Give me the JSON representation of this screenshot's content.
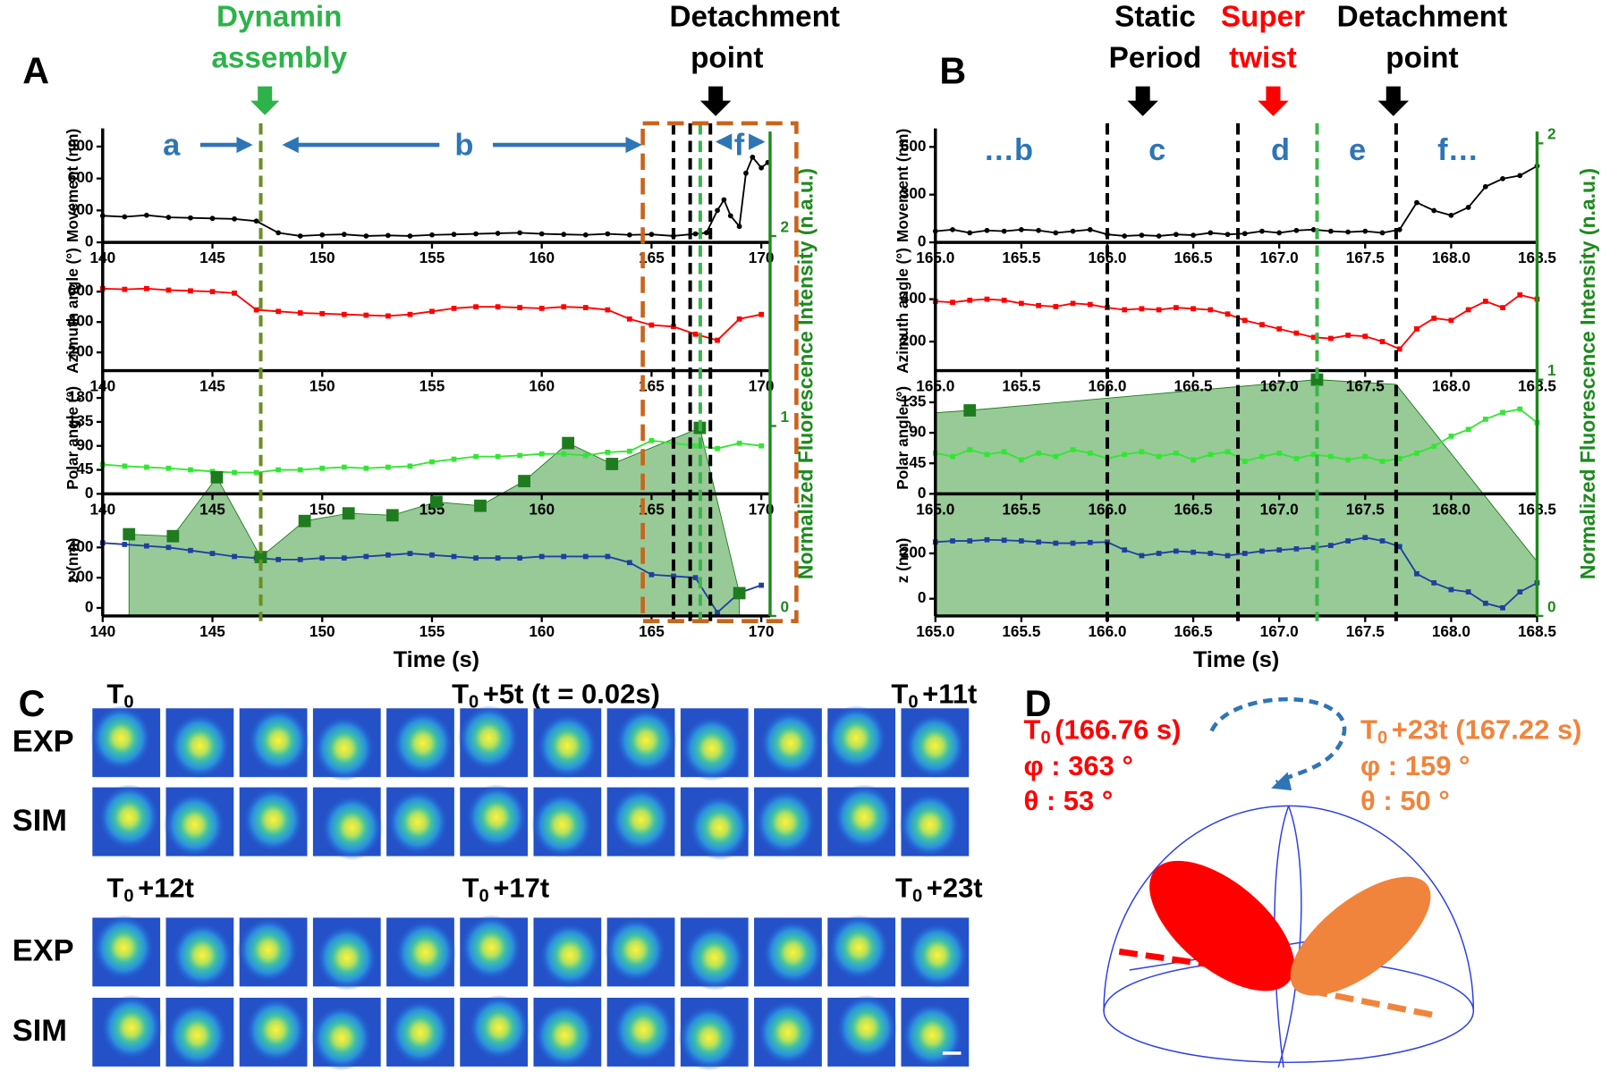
{
  "panel_a": {
    "letter": "A",
    "xlabel": "Time (s)",
    "xlim": [
      140,
      170.4
    ],
    "xticks": [
      140,
      145,
      150,
      155,
      160,
      165,
      170
    ],
    "y2label": "Normalized Fluorescence Intensity (n.a.u.)",
    "y2lim": [
      0,
      2.55
    ],
    "y2ticks": [
      0,
      1,
      2
    ],
    "annotations": {
      "dynamin": [
        "Dynamin",
        "assembly"
      ],
      "detachment": [
        "Detachment",
        "point"
      ],
      "phases": [
        "a",
        "b",
        "f"
      ]
    },
    "subplots": [
      {
        "ylabel": "Movement (nm)",
        "ylim": [
          0,
          1070
        ],
        "yticks": [
          0,
          300,
          600,
          900
        ],
        "color": "#000000",
        "marker": "circle",
        "x": [
          140,
          141,
          142,
          143,
          144,
          145,
          146,
          147,
          148,
          149,
          150,
          151,
          152,
          153,
          154,
          155,
          156,
          157,
          158,
          159,
          160,
          161,
          162,
          163,
          164,
          165,
          166,
          167,
          167.5,
          168,
          168.3,
          168.6,
          169,
          169.3,
          169.6,
          170,
          170.3
        ],
        "values": [
          250,
          240,
          255,
          235,
          230,
          225,
          220,
          200,
          90,
          60,
          70,
          75,
          60,
          65,
          60,
          70,
          75,
          80,
          85,
          90,
          80,
          75,
          70,
          80,
          70,
          75,
          60,
          80,
          90,
          300,
          400,
          250,
          150,
          650,
          800,
          700,
          750
        ]
      },
      {
        "ylabel": "Azimuth angle (°)",
        "ylim": [
          80,
          870
        ],
        "yticks": [
          200,
          400,
          600
        ],
        "color": "#ff0000",
        "marker": "square",
        "x": [
          140,
          141,
          142,
          143,
          144,
          145,
          146,
          147,
          148,
          149,
          150,
          151,
          152,
          153,
          154,
          155,
          156,
          157,
          158,
          159,
          160,
          161,
          162,
          163,
          164,
          165,
          166,
          167,
          168,
          169,
          170
        ],
        "values": [
          620,
          615,
          620,
          610,
          605,
          600,
          590,
          480,
          470,
          460,
          455,
          450,
          445,
          440,
          450,
          470,
          490,
          500,
          500,
          495,
          490,
          500,
          495,
          480,
          420,
          380,
          370,
          320,
          280,
          420,
          450
        ]
      },
      {
        "ylabel": "Polar angle (°)",
        "ylim": [
          0,
          210
        ],
        "yticks": [
          0,
          45,
          90,
          135,
          180
        ],
        "color": "#33e633",
        "marker": "square",
        "x": [
          140,
          141,
          142,
          143,
          144,
          145,
          146,
          147,
          148,
          149,
          150,
          151,
          152,
          153,
          154,
          155,
          156,
          157,
          158,
          159,
          160,
          161,
          162,
          163,
          164,
          165,
          166,
          167,
          168,
          169,
          170
        ],
        "values": [
          55,
          52,
          50,
          48,
          45,
          42,
          40,
          40,
          45,
          45,
          48,
          50,
          48,
          50,
          52,
          60,
          65,
          70,
          70,
          72,
          75,
          75,
          72,
          78,
          80,
          100,
          95,
          90,
          85,
          95,
          90
        ]
      },
      {
        "ylabel": "z (nm)",
        "ylim": [
          -53,
          680
        ],
        "yticks": [
          0,
          200,
          400
        ],
        "color": "#1f3fa0",
        "marker": "square",
        "x": [
          140,
          141,
          142,
          143,
          144,
          145,
          146,
          147,
          148,
          149,
          150,
          151,
          152,
          153,
          154,
          155,
          156,
          157,
          158,
          159,
          160,
          161,
          162,
          163,
          164,
          165,
          166,
          167,
          168,
          169,
          170
        ],
        "values": [
          430,
          420,
          410,
          400,
          380,
          360,
          340,
          330,
          320,
          320,
          330,
          330,
          340,
          350,
          360,
          350,
          340,
          330,
          330,
          330,
          340,
          340,
          340,
          340,
          300,
          220,
          210,
          200,
          -30,
          100,
          150
        ]
      }
    ],
    "fluorescence": {
      "color": "#1e7b1e",
      "area_color": "#5fae5f",
      "points": {
        "x": [
          141.2,
          143.2,
          145.2,
          147.2,
          149.2,
          151.2,
          153.2,
          155.2,
          157.2,
          159.2,
          161.2,
          163.2,
          167.2,
          169.0
        ],
        "values": [
          0.43,
          0.42,
          0.73,
          0.31,
          0.5,
          0.54,
          0.53,
          0.6,
          0.58,
          0.71,
          0.91,
          0.8,
          0.99,
          0.12
        ]
      }
    },
    "vlines": [
      {
        "x": 147.2,
        "color": "#6b8e23"
      },
      {
        "x": 166.0,
        "color": "#000000"
      },
      {
        "x": 166.76,
        "color": "#000000"
      },
      {
        "x": 167.22,
        "color": "#3cb44b"
      },
      {
        "x": 167.68,
        "color": "#000000"
      }
    ],
    "zoom_box": {
      "x": [
        164.6,
        171.6
      ],
      "color": "#c8641e"
    }
  },
  "panel_b": {
    "letter": "B",
    "xlabel": "Time (s)",
    "xlim": [
      165.0,
      168.5
    ],
    "xticks": [
      {
        "value": 165,
        "label": "165.0"
      },
      165.5,
      {
        "value": 166,
        "label": "166.0"
      },
      166.5,
      {
        "value": 167,
        "label": "167.0"
      },
      167.5,
      {
        "value": 168,
        "label": "168.0"
      },
      168.5
    ],
    "y2label": "Normalized Fluorescence Intensity (n.a.u.)",
    "y2lim": [
      0,
      2.05
    ],
    "y2ticks": [
      0,
      1,
      2
    ],
    "annotations": {
      "static": [
        "Static",
        "Period"
      ],
      "super": [
        "Super",
        "twist"
      ],
      "detachment": [
        "Detachment",
        "point"
      ],
      "phases": [
        "…b",
        "c",
        "d",
        "e",
        "f…"
      ]
    },
    "subplots": [
      {
        "ylabel": "Movement (nm)",
        "ylim": [
          0,
          716
        ],
        "yticks": [
          0,
          300,
          600
        ],
        "color": "#000000",
        "marker": "circle",
        "x": [
          165.0,
          165.1,
          165.2,
          165.3,
          165.4,
          165.5,
          165.6,
          165.7,
          165.8,
          165.9,
          166.0,
          166.1,
          166.2,
          166.3,
          166.4,
          166.5,
          166.6,
          166.7,
          166.8,
          166.9,
          167.0,
          167.1,
          167.2,
          167.3,
          167.4,
          167.5,
          167.6,
          167.7,
          167.8,
          167.9,
          168.0,
          168.1,
          168.2,
          168.3,
          168.4,
          168.5
        ],
        "values": [
          70,
          80,
          60,
          75,
          70,
          80,
          75,
          60,
          70,
          80,
          50,
          40,
          45,
          40,
          50,
          45,
          60,
          50,
          55,
          70,
          60,
          75,
          80,
          70,
          65,
          70,
          60,
          80,
          250,
          200,
          170,
          220,
          350,
          400,
          420,
          480
        ]
      },
      {
        "ylabel": "Azimuth angle (°)",
        "ylim": [
          63,
          629
        ],
        "yticks": [
          200,
          400
        ],
        "color": "#ff0000",
        "marker": "square",
        "x": [
          165.0,
          165.1,
          165.2,
          165.3,
          165.4,
          165.5,
          165.6,
          165.7,
          165.8,
          165.9,
          166.0,
          166.1,
          166.2,
          166.3,
          166.4,
          166.5,
          166.6,
          166.7,
          166.8,
          166.9,
          167.0,
          167.1,
          167.2,
          167.3,
          167.4,
          167.5,
          167.6,
          167.7,
          167.8,
          167.9,
          168.0,
          168.1,
          168.2,
          168.3,
          168.4,
          168.5
        ],
        "values": [
          390,
          385,
          395,
          400,
          395,
          380,
          370,
          365,
          380,
          375,
          360,
          350,
          355,
          350,
          360,
          355,
          350,
          330,
          300,
          280,
          260,
          240,
          220,
          215,
          230,
          225,
          200,
          165,
          260,
          310,
          300,
          350,
          390,
          360,
          420,
          400
        ]
      },
      {
        "ylabel": "Polar angle (°)",
        "ylim": [
          0,
          165
        ],
        "yticks": [
          0,
          45,
          90,
          135
        ],
        "color": "#33e633",
        "marker": "square",
        "x": [
          165.0,
          165.1,
          165.2,
          165.3,
          165.4,
          165.5,
          165.6,
          165.7,
          165.8,
          165.9,
          166.0,
          166.1,
          166.2,
          166.3,
          166.4,
          166.5,
          166.6,
          166.7,
          166.8,
          166.9,
          167.0,
          167.1,
          167.2,
          167.3,
          167.4,
          167.5,
          167.6,
          167.7,
          167.8,
          167.9,
          168.0,
          168.1,
          168.2,
          168.3,
          168.4,
          168.5
        ],
        "values": [
          60,
          55,
          65,
          58,
          62,
          50,
          60,
          55,
          65,
          60,
          52,
          58,
          62,
          55,
          60,
          50,
          58,
          62,
          48,
          55,
          60,
          52,
          58,
          55,
          50,
          55,
          48,
          52,
          60,
          70,
          85,
          95,
          110,
          120,
          125,
          105
        ]
      },
      {
        "ylabel": "z (nm)",
        "ylim": [
          -76,
          413
        ],
        "yticks": [
          0,
          200
        ],
        "color": "#1f3fa0",
        "marker": "square",
        "x": [
          165.0,
          165.1,
          165.2,
          165.3,
          165.4,
          165.5,
          165.6,
          165.7,
          165.8,
          165.9,
          166.0,
          166.1,
          166.2,
          166.3,
          166.4,
          166.5,
          166.6,
          166.7,
          166.8,
          166.9,
          167.0,
          167.1,
          167.2,
          167.3,
          167.4,
          167.5,
          167.6,
          167.7,
          167.8,
          167.9,
          168.0,
          168.1,
          168.2,
          168.3,
          168.4,
          168.5
        ],
        "values": [
          250,
          255,
          255,
          260,
          258,
          255,
          250,
          245,
          245,
          248,
          250,
          215,
          190,
          200,
          210,
          205,
          200,
          190,
          200,
          210,
          215,
          220,
          225,
          235,
          255,
          270,
          255,
          230,
          110,
          70,
          40,
          30,
          -20,
          -40,
          30,
          70
        ]
      }
    ],
    "fluorescence": {
      "color": "#1e7b1e",
      "area_color": "#5fae5f",
      "area": {
        "x": [
          165.0,
          165.2,
          167.22,
          167.68,
          168.5
        ],
        "values": [
          0.86,
          0.87,
          1.0,
          0.98,
          0.23
        ]
      },
      "points": {
        "x": [
          165.2,
          167.22
        ],
        "values": [
          0.87,
          1.0
        ]
      }
    },
    "vlines": [
      {
        "x": 166.0,
        "color": "#000000"
      },
      {
        "x": 166.76,
        "color": "#000000"
      },
      {
        "x": 167.22,
        "color": "#3cb44b"
      },
      {
        "x": 167.68,
        "color": "#000000"
      }
    ]
  },
  "panel_c": {
    "letter": "C",
    "row_labels": [
      "EXP",
      "SIM",
      "EXP",
      "SIM"
    ],
    "time_labels": [
      {
        "base": "T",
        "sub": "0"
      },
      {
        "base": "T",
        "sub": "0",
        "rest": "+5t (t = 0.02s)"
      },
      {
        "base": "T",
        "sub": "0",
        "rest": "+11t"
      },
      {
        "base": "T",
        "sub": "0",
        "rest": "+12t"
      },
      {
        "base": "T",
        "sub": "0",
        "rest": "+17t"
      },
      {
        "base": "T",
        "sub": "0",
        "rest": "+23t"
      }
    ]
  },
  "panel_d": {
    "letter": "D",
    "state_0": {
      "base": "T",
      "sub": "0",
      "rest": "(166.76 s)",
      "phi": "φ : 363 °",
      "theta": "θ : 53 °",
      "color": "#ff0000"
    },
    "state_1": {
      "base": "T",
      "sub": "0",
      "rest": "+23t (167.22 s)",
      "phi": "φ : 159 °",
      "theta": "θ : 50 °",
      "color": "#f0843c"
    }
  }
}
